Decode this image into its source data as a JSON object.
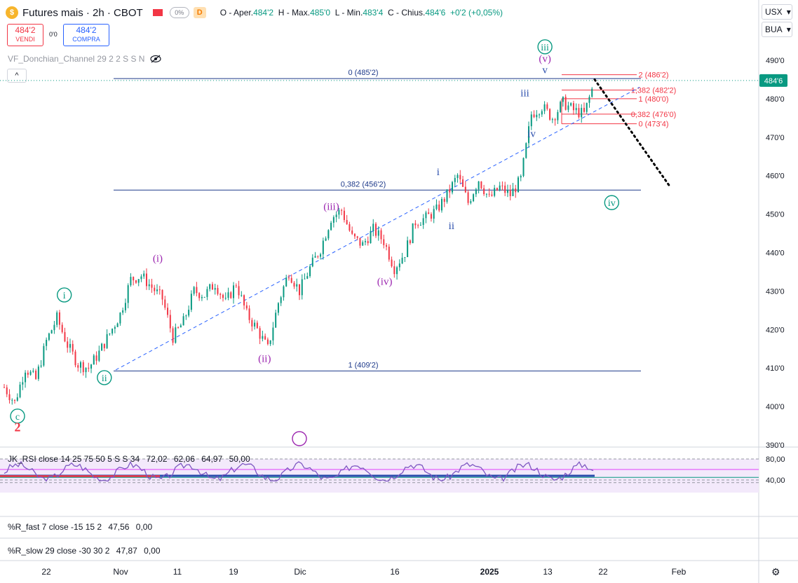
{
  "header": {
    "logo_glyph": "$",
    "title": "Futures mais · 2h · CBOT",
    "flag_color": "#f23645",
    "pill_text": "0%",
    "d_badge": "D",
    "ohlc": {
      "open_label": "O - Aper.",
      "open": "484'2",
      "high_label": "H - Max.",
      "high": "485'0",
      "low_label": "L - Min.",
      "low": "483'4",
      "close_label": "C - Chius.",
      "close": "484'6",
      "change": "+0'2 (+0,05%)"
    }
  },
  "trade": {
    "sell_price": "484'2",
    "sell_label": "VENDI",
    "spread": "0'0",
    "buy_price": "484'2",
    "buy_label": "COMPRA"
  },
  "indicator": {
    "name": "VF_Donchian_Channel 29 2 2 S S N",
    "eye_icon": "eye-off-icon"
  },
  "collapse": {
    "glyph": "^"
  },
  "right_panel": {
    "currency": "USX",
    "unit": "BUA",
    "last_price_tag": "484'6",
    "price_tag_color": "#089981"
  },
  "rsi_pane": {
    "label": "JK_RSI close 14 25 75 50 5 S S 34",
    "values": [
      "72,02",
      "62,06",
      "64,97",
      "50,00"
    ],
    "value_colors": [
      "#131722",
      "#131722",
      "#131722",
      "#131722"
    ],
    "axis_ticks": [
      "80,00",
      "40,00"
    ]
  },
  "rfast_pane": {
    "label": "%R_fast 7 close -15 15 2",
    "values": [
      "47,56",
      "0,00"
    ]
  },
  "rslow_pane": {
    "label": "%R_slow 29 close -30 30 2",
    "values": [
      "47,87",
      "0,00"
    ]
  },
  "time_axis": [
    "22",
    "Nov",
    "11",
    "19",
    "Dic",
    "16",
    "2025",
    "13",
    "22",
    "Feb"
  ],
  "chart_data": {
    "type": "candlestick",
    "price_ticks": [
      "490'0",
      "480'0",
      "470'0",
      "460'0",
      "450'0",
      "440'0",
      "430'0",
      "420'0",
      "410'0",
      "400'0",
      "390'0"
    ],
    "price_range": [
      388,
      494
    ],
    "series": [
      {
        "name": "Futures mais",
        "path": [
          405,
          401,
          410,
          407,
          417,
          423,
          416,
          411,
          410,
          414,
          419,
          424,
          433,
          434,
          431,
          428,
          418,
          422,
          430,
          429,
          432,
          427,
          432,
          424,
          420,
          415,
          427,
          435,
          430,
          436,
          441,
          449,
          451,
          444,
          442,
          446,
          443,
          436,
          440,
          448,
          449,
          451,
          455,
          460,
          453,
          459,
          454,
          457,
          455,
          459,
          476,
          478,
          475,
          479,
          477,
          476,
          484.5
        ]
      }
    ],
    "fib_levels": [
      {
        "label": "0 (485'2)",
        "value": 485.25,
        "color": "#1e3a8a"
      },
      {
        "label": "0,382 (456'2)",
        "value": 456.25,
        "color": "#1e3a8a"
      },
      {
        "label": "1 (409'2)",
        "value": 409.25,
        "color": "#1e3a8a"
      }
    ],
    "fib_ext_levels": [
      {
        "label": "2 (486'2)",
        "value": 486.25
      },
      {
        "label": "1,382 (482'2)",
        "value": 482.25
      },
      {
        "label": "1 (480'0)",
        "value": 480.0
      },
      {
        "label": "0,382 (476'0)",
        "value": 476.0
      },
      {
        "label": "0 (473'4)",
        "value": 473.5
      }
    ],
    "wave_labels": [
      {
        "text": "c",
        "style": "circle-teal",
        "price": 397.5,
        "t": 0.02
      },
      {
        "text": "2",
        "style": "red-bold",
        "price": 394.5,
        "t": 0.02
      },
      {
        "text": "i",
        "style": "circle-teal",
        "price": 429.0,
        "t": 0.09
      },
      {
        "text": "ii",
        "style": "circle-teal",
        "price": 407.5,
        "t": 0.15
      },
      {
        "text": "(i)",
        "style": "purple",
        "price": 438.5,
        "t": 0.23
      },
      {
        "text": "(ii)",
        "style": "purple",
        "price": 412.5,
        "t": 0.39
      },
      {
        "text": "(iii)",
        "style": "purple",
        "price": 452.0,
        "t": 0.49
      },
      {
        "text": "(iv)",
        "style": "purple",
        "price": 432.5,
        "t": 0.57
      },
      {
        "text": "i",
        "style": "blue",
        "price": 461.0,
        "t": 0.65
      },
      {
        "text": "ii",
        "style": "blue",
        "price": 447.0,
        "t": 0.67
      },
      {
        "text": "iii",
        "style": "blue",
        "price": 481.5,
        "t": 0.78
      },
      {
        "text": "iv",
        "style": "blue",
        "price": 471.0,
        "t": 0.79
      },
      {
        "text": "v",
        "style": "blue",
        "price": 487.5,
        "t": 0.81
      },
      {
        "text": "(v)",
        "style": "purple",
        "price": 490.5,
        "t": 0.81
      },
      {
        "text": "iii",
        "style": "circle-teal",
        "price": 493.5,
        "t": 0.81
      },
      {
        "text": "iv",
        "style": "circle-teal",
        "price": 453.0,
        "t": 0.91
      }
    ],
    "projection": {
      "from_price": 485.0,
      "to_price": 457.0,
      "color": "#000000"
    },
    "colors": {
      "up": "#089981",
      "down": "#f23645",
      "fib": "#1e3a8a",
      "fib_ext": "#f23645",
      "teal": "#089981",
      "purple": "#9c27b0",
      "blue": "#2a4dac"
    }
  }
}
